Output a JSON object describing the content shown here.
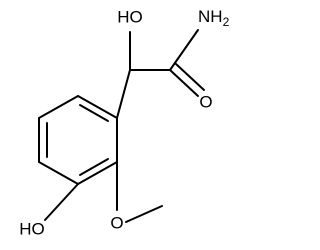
{
  "atoms": {
    "hydroxyl_top": "HO",
    "amine": "NH",
    "amine_subscript": "2",
    "carbonyl_oxygen": "O",
    "hydroxyl_ring": "HO",
    "methoxy_oxygen": "O"
  }
}
